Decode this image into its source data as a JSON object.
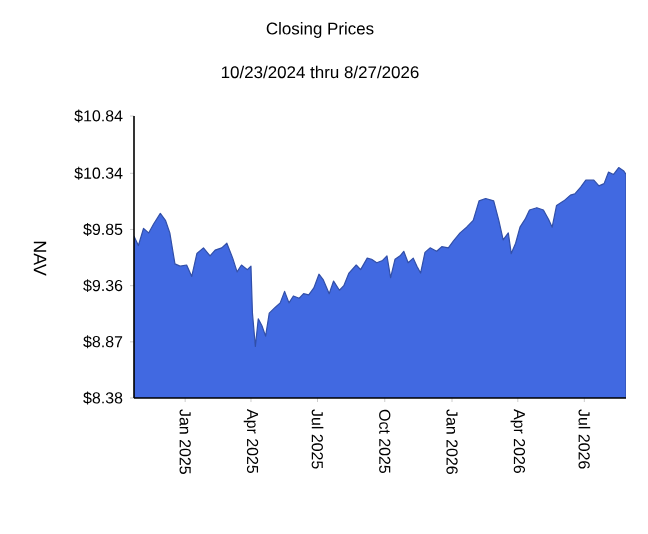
{
  "chart_data": {
    "type": "area",
    "title": "Closing Prices",
    "subtitle": "10/23/2024 thru 8/27/2026",
    "ylabel": "NAV",
    "color": "#4169e1",
    "xlim": [
      "2024-10-23",
      "2026-08-27"
    ],
    "ylim": [
      8.38,
      10.84
    ],
    "xticks": [
      {
        "value": "2025-01-01",
        "label": "Jan 2025"
      },
      {
        "value": "2025-04-01",
        "label": "Apr 2025"
      },
      {
        "value": "2025-07-01",
        "label": "Jul 2025"
      },
      {
        "value": "2025-10-01",
        "label": "Oct 2025"
      },
      {
        "value": "2026-01-01",
        "label": "Jan 2026"
      },
      {
        "value": "2026-04-01",
        "label": "Apr 2026"
      },
      {
        "value": "2026-07-01",
        "label": "Jul 2026"
      }
    ],
    "yticks": [
      {
        "value": 8.38,
        "label": "$8.38"
      },
      {
        "value": 8.87,
        "label": "$8.87"
      },
      {
        "value": 9.36,
        "label": "$9.36"
      },
      {
        "value": 9.85,
        "label": "$9.85"
      },
      {
        "value": 10.34,
        "label": "$10.34"
      },
      {
        "value": 10.84,
        "label": "$10.84"
      }
    ],
    "x": [
      "2024-10-23",
      "2024-10-29",
      "2024-11-05",
      "2024-11-12",
      "2024-11-19",
      "2024-11-28",
      "2024-12-05",
      "2024-12-11",
      "2024-12-18",
      "2024-12-25",
      "2025-01-03",
      "2025-01-10",
      "2025-01-17",
      "2025-01-26",
      "2025-02-04",
      "2025-02-11",
      "2025-02-20",
      "2025-02-27",
      "2025-03-07",
      "2025-03-13",
      "2025-03-19",
      "2025-03-27",
      "2025-04-01",
      "2025-04-03",
      "2025-04-07",
      "2025-04-11",
      "2025-04-16",
      "2025-04-21",
      "2025-04-26",
      "2025-05-04",
      "2025-05-11",
      "2025-05-17",
      "2025-05-23",
      "2025-05-29",
      "2025-06-06",
      "2025-06-12",
      "2025-06-19",
      "2025-06-26",
      "2025-07-03",
      "2025-07-09",
      "2025-07-17",
      "2025-07-23",
      "2025-07-31",
      "2025-08-06",
      "2025-08-13",
      "2025-08-23",
      "2025-08-29",
      "2025-09-07",
      "2025-09-13",
      "2025-09-20",
      "2025-09-28",
      "2025-10-04",
      "2025-10-09",
      "2025-10-15",
      "2025-10-22",
      "2025-10-27",
      "2025-11-02",
      "2025-11-09",
      "2025-11-14",
      "2025-11-19",
      "2025-11-25",
      "2025-12-02",
      "2025-12-11",
      "2025-12-18",
      "2025-12-27",
      "2026-01-03",
      "2026-01-12",
      "2026-01-21",
      "2026-01-30",
      "2026-02-07",
      "2026-02-16",
      "2026-02-27",
      "2026-03-06",
      "2026-03-12",
      "2026-03-19",
      "2026-03-23",
      "2026-03-29",
      "2026-04-04",
      "2026-04-11",
      "2026-04-17",
      "2026-04-27",
      "2026-05-06",
      "2026-05-13",
      "2026-05-18",
      "2026-05-24",
      "2026-06-03",
      "2026-06-12",
      "2026-06-18",
      "2026-06-26",
      "2026-07-03",
      "2026-07-14",
      "2026-07-21",
      "2026-07-28",
      "2026-08-03",
      "2026-08-10",
      "2026-08-17",
      "2026-08-24",
      "2026-08-27"
    ],
    "values": [
      9.79,
      9.71,
      9.86,
      9.82,
      9.9,
      9.99,
      9.93,
      9.82,
      9.55,
      9.53,
      9.54,
      9.44,
      9.64,
      9.69,
      9.62,
      9.67,
      9.69,
      9.73,
      9.6,
      9.48,
      9.54,
      9.5,
      9.53,
      9.12,
      8.83,
      9.07,
      9.01,
      8.92,
      9.12,
      9.17,
      9.21,
      9.31,
      9.21,
      9.27,
      9.25,
      9.29,
      9.28,
      9.34,
      9.46,
      9.41,
      9.29,
      9.4,
      9.32,
      9.36,
      9.47,
      9.54,
      9.5,
      9.6,
      9.59,
      9.56,
      9.58,
      9.62,
      9.43,
      9.59,
      9.62,
      9.66,
      9.56,
      9.6,
      9.53,
      9.47,
      9.65,
      9.69,
      9.66,
      9.7,
      9.69,
      9.75,
      9.82,
      9.87,
      9.93,
      10.1,
      10.12,
      10.1,
      9.93,
      9.76,
      9.82,
      9.64,
      9.73,
      9.87,
      9.94,
      10.02,
      10.04,
      10.02,
      9.94,
      9.87,
      10.06,
      10.1,
      10.15,
      10.16,
      10.22,
      10.28,
      10.28,
      10.23,
      10.25,
      10.35,
      10.33,
      10.39,
      10.36,
      10.33
    ]
  }
}
